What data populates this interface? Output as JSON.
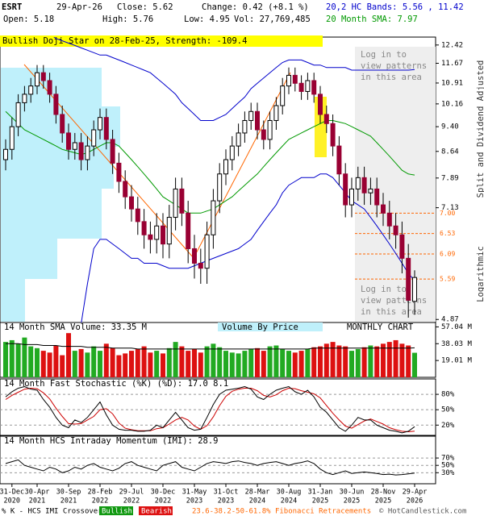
{
  "header": {
    "symbol": "ESRT",
    "date": "29-Apr-26",
    "close": "Close: 5.62",
    "change": "Change: 0.42 (+8.1 %)",
    "open": "Open: 5.18",
    "high": "High: 5.76",
    "low": "Low: 4.95",
    "volume": "Vol: 27,769,485",
    "bands": "20,2 HC Bands: 5.56 , 11.42",
    "sma": "20 Month SMA: 7.97",
    "pattern": "Bullish Doji Star on 28-Feb-25, Strength: -109.4",
    "side_note": "Split and Dividend Adjusted",
    "scale_note": "Logarithmic",
    "login_top": [
      "Log in to",
      "view patterns",
      "in this area"
    ],
    "login_bottom": [
      "Log in to",
      "view patterns",
      "in this area"
    ]
  },
  "footer": {
    "crossover": "% K - HCS IMI Crossover,",
    "bullish": "Bullish",
    "bearish": "Bearish",
    "fib": "23.6-38.2-50-61.8% Fibonacci Retracements",
    "copyright": "© HotCandlestick.com"
  },
  "chart_data": [
    {
      "type": "candlestick",
      "log": true,
      "up_color": "#ffffff",
      "down_color": "#990033",
      "open": [
        8.4,
        8.7,
        9.4,
        10.2,
        10.5,
        10.8,
        11.3,
        11.0,
        10.5,
        9.8,
        9.2,
        8.7,
        8.9,
        8.4,
        8.8,
        9.3,
        9.7,
        9.0,
        8.3,
        7.8,
        7.4,
        7.1,
        6.8,
        6.5,
        6.4,
        6.7,
        6.3,
        6.9,
        7.6,
        7.0,
        6.2,
        5.9,
        5.8,
        6.5,
        7.3,
        8.0,
        8.4,
        8.8,
        9.2,
        9.6,
        9.9,
        9.3,
        9.0,
        9.6,
        10.1,
        10.8,
        11.2,
        10.9,
        10.6,
        11.0,
        10.5,
        9.8,
        9.5,
        8.8,
        8.0,
        7.2,
        7.6,
        7.9,
        7.5,
        7.6,
        7.2,
        7.0,
        6.7,
        6.5,
        6.0,
        5.18
      ],
      "high": [
        9.0,
        9.7,
        10.5,
        10.8,
        11.1,
        11.6,
        11.6,
        11.3,
        10.8,
        10.1,
        9.5,
        9.2,
        9.2,
        9.1,
        9.6,
        10.0,
        10.0,
        9.3,
        8.6,
        8.1,
        7.7,
        7.4,
        7.1,
        6.8,
        7.0,
        7.0,
        7.2,
        7.9,
        7.9,
        7.3,
        6.5,
        6.2,
        6.8,
        7.6,
        8.3,
        8.7,
        9.1,
        9.5,
        9.9,
        10.2,
        10.2,
        9.6,
        9.9,
        10.4,
        11.1,
        11.5,
        11.5,
        11.2,
        11.3,
        11.3,
        10.8,
        10.1,
        9.8,
        9.1,
        8.3,
        7.9,
        8.2,
        8.2,
        7.9,
        7.9,
        7.5,
        7.3,
        7.0,
        6.8,
        6.3,
        5.76
      ],
      "low": [
        8.1,
        8.4,
        9.1,
        9.9,
        10.2,
        10.5,
        10.7,
        10.2,
        9.5,
        8.9,
        8.4,
        8.4,
        8.1,
        8.1,
        8.5,
        9.0,
        8.7,
        8.0,
        7.5,
        7.1,
        6.8,
        6.5,
        6.2,
        6.1,
        6.1,
        6.0,
        6.0,
        6.6,
        6.7,
        5.9,
        5.6,
        5.5,
        5.5,
        6.2,
        7.0,
        7.7,
        8.1,
        8.5,
        8.9,
        9.3,
        9.0,
        8.7,
        8.7,
        9.3,
        9.8,
        10.5,
        10.6,
        10.3,
        10.3,
        10.2,
        9.5,
        9.2,
        8.5,
        7.7,
        6.9,
        6.9,
        7.3,
        7.2,
        7.2,
        6.9,
        6.7,
        6.4,
        6.2,
        5.7,
        4.9,
        4.95
      ],
      "close": [
        8.7,
        9.4,
        10.2,
        10.5,
        10.8,
        11.3,
        11.0,
        10.5,
        9.8,
        9.2,
        8.7,
        8.9,
        8.4,
        8.8,
        9.3,
        9.7,
        9.0,
        8.3,
        7.8,
        7.4,
        7.1,
        6.8,
        6.5,
        6.4,
        6.7,
        6.3,
        6.9,
        7.6,
        7.0,
        6.2,
        5.9,
        5.8,
        6.5,
        7.3,
        8.0,
        8.4,
        8.8,
        9.2,
        9.6,
        9.9,
        9.3,
        9.0,
        9.6,
        10.1,
        10.8,
        11.2,
        10.9,
        10.6,
        11.0,
        10.5,
        9.8,
        9.5,
        8.8,
        8.0,
        7.2,
        7.6,
        7.9,
        7.5,
        7.6,
        7.2,
        7.0,
        6.7,
        6.5,
        6.0,
        5.2,
        5.62
      ],
      "bands": {
        "color": "#0000cc",
        "upper": [
          13.6,
          13.6,
          13.5,
          13.4,
          13.3,
          13.2,
          13.0,
          12.9,
          12.7,
          12.6,
          12.5,
          12.4,
          12.3,
          12.2,
          12.1,
          12.0,
          12.0,
          11.9,
          11.8,
          11.7,
          11.6,
          11.5,
          11.4,
          11.3,
          11.1,
          10.9,
          10.7,
          10.5,
          10.2,
          10.0,
          9.8,
          9.6,
          9.6,
          9.6,
          9.7,
          9.8,
          10.0,
          10.2,
          10.4,
          10.7,
          10.9,
          11.1,
          11.3,
          11.5,
          11.7,
          11.8,
          11.8,
          11.8,
          11.7,
          11.6,
          11.6,
          11.5,
          11.5,
          11.5,
          11.5,
          11.4,
          11.4,
          11.4,
          11.4,
          11.4,
          11.4,
          11.4,
          11.4,
          11.4,
          11.4,
          11.42
        ],
        "lower": [
          3.5,
          3.6,
          3.7,
          3.8,
          3.9,
          4.0,
          4.1,
          4.2,
          4.3,
          4.4,
          4.5,
          4.6,
          4.8,
          5.5,
          6.2,
          6.4,
          6.4,
          6.3,
          6.2,
          6.1,
          6.0,
          6.0,
          5.9,
          5.9,
          5.9,
          5.85,
          5.8,
          5.8,
          5.8,
          5.8,
          5.85,
          5.9,
          5.95,
          6.0,
          6.05,
          6.1,
          6.15,
          6.2,
          6.3,
          6.4,
          6.6,
          6.8,
          7.0,
          7.2,
          7.5,
          7.7,
          7.8,
          7.9,
          7.9,
          7.9,
          8.0,
          8.0,
          7.9,
          7.7,
          7.5,
          7.3,
          7.2,
          7.1,
          6.9,
          6.7,
          6.5,
          6.3,
          6.1,
          5.9,
          5.7,
          5.56
        ]
      },
      "sma": {
        "color": "#009900",
        "values": [
          9.9,
          9.7,
          9.5,
          9.3,
          9.2,
          9.1,
          9.0,
          8.9,
          8.8,
          8.7,
          8.65,
          8.6,
          8.55,
          8.6,
          8.7,
          8.8,
          8.9,
          8.9,
          8.8,
          8.6,
          8.4,
          8.2,
          8.0,
          7.8,
          7.6,
          7.4,
          7.3,
          7.2,
          7.1,
          7.0,
          7.0,
          7.0,
          7.05,
          7.1,
          7.2,
          7.3,
          7.4,
          7.55,
          7.7,
          7.85,
          8.0,
          8.2,
          8.4,
          8.6,
          8.8,
          9.0,
          9.1,
          9.2,
          9.3,
          9.4,
          9.5,
          9.6,
          9.6,
          9.55,
          9.5,
          9.4,
          9.3,
          9.2,
          9.1,
          8.9,
          8.7,
          8.5,
          8.3,
          8.1,
          8.0,
          7.97
        ]
      },
      "ylim": [
        4.82,
        12.76
      ],
      "yticks": [
        {
          "value": 12.42,
          "label": "12.42"
        },
        {
          "value": 11.67,
          "label": "11.67"
        },
        {
          "value": 10.91,
          "label": "10.91"
        },
        {
          "value": 10.16,
          "label": "10.16"
        },
        {
          "value": 9.4,
          "label": "9.40"
        },
        {
          "value": 8.64,
          "label": "8.64"
        },
        {
          "value": 7.89,
          "label": "7.89"
        },
        {
          "value": 7.13,
          "label": "7.13"
        },
        {
          "value": 4.87,
          "label": "4.87"
        }
      ],
      "fib_color": "#ff6600",
      "fib_levels": [
        {
          "value": 7.0,
          "label": "7.00"
        },
        {
          "value": 6.53,
          "label": "6.53"
        },
        {
          "value": 6.09,
          "label": "6.09"
        },
        {
          "value": 5.59,
          "label": "5.59"
        }
      ],
      "xticks": [
        {
          "value": 1,
          "label": [
            "31-Dec",
            "2020"
          ]
        },
        {
          "value": 5,
          "label": [
            "30-Apr",
            "2021"
          ]
        },
        {
          "value": 10,
          "label": [
            "30-Sep",
            "2021"
          ]
        },
        {
          "value": 15,
          "label": [
            "28-Feb",
            "2022"
          ]
        },
        {
          "value": 20,
          "label": [
            "29-Jul",
            "2022"
          ]
        },
        {
          "value": 25,
          "label": [
            "30-Dec",
            "2022"
          ]
        },
        {
          "value": 30,
          "label": [
            "31-May",
            "2023"
          ]
        },
        {
          "value": 35,
          "label": [
            "31-Oct",
            "2023"
          ]
        },
        {
          "value": 40,
          "label": [
            "28-Mar",
            "2024"
          ]
        },
        {
          "value": 45,
          "label": [
            "30-Aug",
            "2024"
          ]
        },
        {
          "value": 50,
          "label": [
            "31-Jan",
            "2025"
          ]
        },
        {
          "value": 55,
          "label": [
            "30-Jun",
            "2025"
          ]
        },
        {
          "value": 60,
          "label": [
            "28-Nov",
            "2025"
          ]
        },
        {
          "value": 65,
          "label": [
            "29-Apr",
            "2026"
          ]
        }
      ]
    },
    {
      "type": "volume",
      "title": "14 Month SMA Volume: 33.35 M",
      "subtitle": "Volume By Price",
      "label": "MONTHLY CHART",
      "up_color": "#22aa22",
      "down_color": "#dd1111",
      "values": [
        40,
        42,
        38,
        45,
        35,
        33,
        30,
        28,
        36,
        25,
        50,
        30,
        32,
        28,
        35,
        30,
        38,
        33,
        25,
        27,
        30,
        32,
        35,
        28,
        30,
        27,
        33,
        40,
        35,
        30,
        32,
        28,
        35,
        38,
        34,
        30,
        28,
        27,
        30,
        32,
        33,
        30,
        35,
        36,
        32,
        30,
        28,
        30,
        32,
        34,
        35,
        38,
        40,
        36,
        35,
        30,
        32,
        34,
        36,
        35,
        38,
        40,
        42,
        38,
        36,
        27.77
      ],
      "sma": [
        38,
        38,
        38,
        37,
        37,
        37,
        36,
        36,
        36,
        35,
        35,
        35,
        35,
        34,
        34,
        34,
        34,
        33,
        33,
        33,
        33,
        32,
        32,
        32,
        32,
        32,
        32,
        32,
        32,
        32,
        32,
        32,
        32,
        32,
        32,
        32,
        32,
        32,
        32,
        32,
        32,
        32,
        32,
        32,
        32,
        32,
        32,
        32,
        32,
        33,
        33,
        33,
        33,
        33,
        33,
        33,
        33,
        33,
        33,
        33,
        33,
        33,
        33,
        33,
        33,
        33.35
      ],
      "ylim": [
        0,
        62
      ],
      "yticks": [
        {
          "value": 57.04,
          "label": "57.04 M"
        },
        {
          "value": 38.03,
          "label": "38.03 M"
        },
        {
          "value": 19.01,
          "label": "19.01 M"
        }
      ]
    },
    {
      "type": "stochastic",
      "title": "14 Month Fast Stochastic (%K) (%D): 17.0  8.1",
      "k_color": "#000000",
      "d_color": "#cc0000",
      "k": [
        75,
        85,
        92,
        95,
        90,
        88,
        70,
        55,
        35,
        20,
        15,
        30,
        25,
        35,
        50,
        65,
        40,
        20,
        12,
        10,
        10,
        8,
        8,
        10,
        20,
        15,
        30,
        45,
        30,
        15,
        10,
        12,
        35,
        60,
        80,
        88,
        90,
        92,
        95,
        90,
        75,
        70,
        80,
        88,
        92,
        95,
        85,
        80,
        88,
        75,
        55,
        45,
        30,
        15,
        8,
        20,
        35,
        30,
        30,
        20,
        15,
        10,
        8,
        5,
        8,
        17
      ],
      "d": [
        70,
        78,
        84,
        90,
        92,
        91,
        83,
        71,
        53,
        37,
        23,
        22,
        23,
        30,
        37,
        50,
        52,
        42,
        24,
        14,
        11,
        9,
        9,
        9,
        13,
        15,
        22,
        30,
        35,
        30,
        18,
        12,
        19,
        36,
        58,
        76,
        86,
        90,
        92,
        92,
        87,
        78,
        75,
        79,
        87,
        92,
        91,
        87,
        84,
        81,
        73,
        58,
        43,
        30,
        18,
        14,
        21,
        28,
        32,
        27,
        22,
        15,
        11,
        8,
        7,
        8.1
      ],
      "ylim": [
        0,
        110
      ],
      "yticks": [
        {
          "value": 80,
          "label": "80%"
        },
        {
          "value": 50,
          "label": "50%"
        },
        {
          "value": 20,
          "label": "20%"
        }
      ]
    },
    {
      "type": "momentum",
      "title": "14 Month HCS Intraday Momentum (IMI): 28.9",
      "color": "#000000",
      "values": [
        55,
        60,
        65,
        50,
        45,
        40,
        35,
        45,
        40,
        30,
        35,
        45,
        40,
        50,
        55,
        45,
        40,
        35,
        42,
        55,
        60,
        50,
        45,
        40,
        35,
        50,
        55,
        60,
        45,
        40,
        35,
        45,
        55,
        60,
        58,
        55,
        60,
        62,
        58,
        55,
        50,
        55,
        58,
        60,
        55,
        50,
        55,
        58,
        62,
        55,
        40,
        30,
        25,
        30,
        35,
        28,
        30,
        32,
        30,
        28,
        25,
        26,
        24,
        25,
        27,
        28.9
      ],
      "ylim": [
        0,
        125
      ],
      "yticks": [
        {
          "value": 70,
          "label": "70%"
        },
        {
          "value": 50,
          "label": "50%"
        },
        {
          "value": 30,
          "label": "30%"
        }
      ]
    }
  ]
}
